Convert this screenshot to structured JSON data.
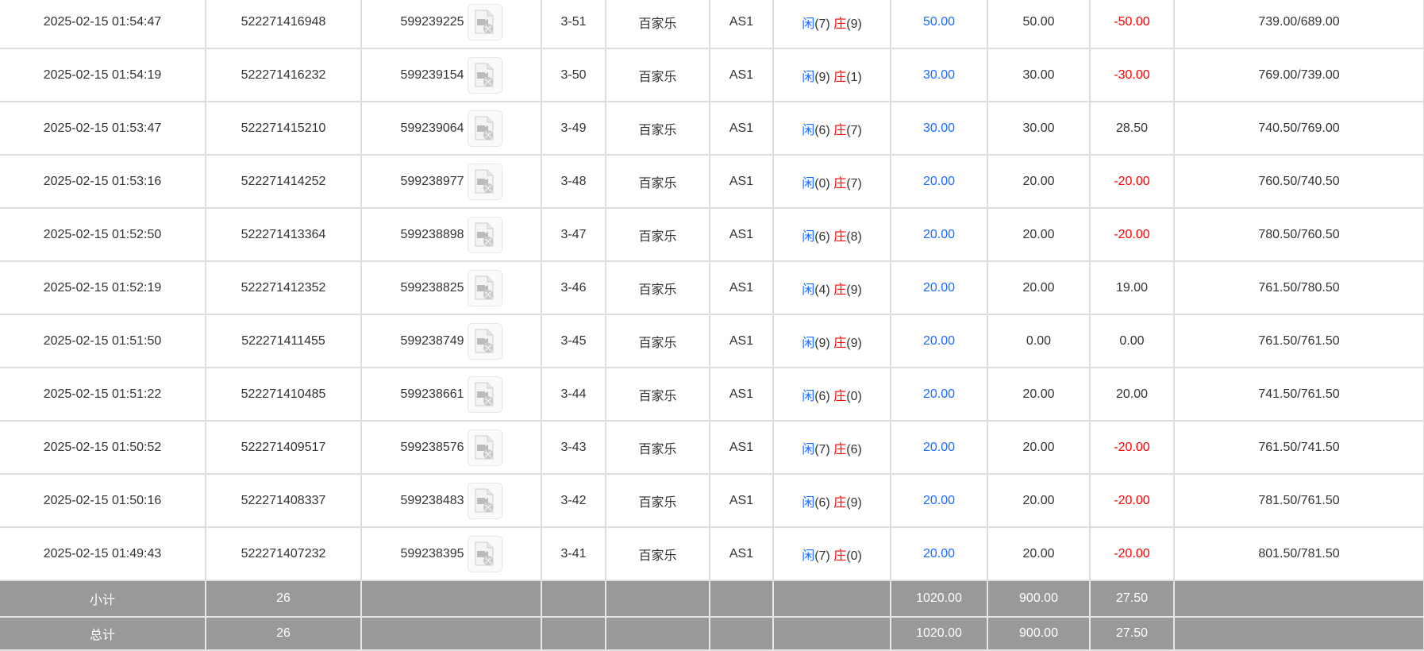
{
  "rows": [
    {
      "time": "2025-02-15 01:54:47",
      "bet_id": "522271416948",
      "round_id": "599239225",
      "table": "3-51",
      "game": "百家乐",
      "room": "AS1",
      "player_label": "闲",
      "player_pts": "(7)",
      "banker_label": "庄",
      "banker_pts": "(9)",
      "bet": "50.00",
      "valid": "50.00",
      "win": "-50.00",
      "win_neg": true,
      "balance": "739.00/689.00"
    },
    {
      "time": "2025-02-15 01:54:19",
      "bet_id": "522271416232",
      "round_id": "599239154",
      "table": "3-50",
      "game": "百家乐",
      "room": "AS1",
      "player_label": "闲",
      "player_pts": "(9)",
      "banker_label": "庄",
      "banker_pts": "(1)",
      "bet": "30.00",
      "valid": "30.00",
      "win": "-30.00",
      "win_neg": true,
      "balance": "769.00/739.00"
    },
    {
      "time": "2025-02-15 01:53:47",
      "bet_id": "522271415210",
      "round_id": "599239064",
      "table": "3-49",
      "game": "百家乐",
      "room": "AS1",
      "player_label": "闲",
      "player_pts": "(6)",
      "banker_label": "庄",
      "banker_pts": "(7)",
      "bet": "30.00",
      "valid": "30.00",
      "win": "28.50",
      "win_neg": false,
      "balance": "740.50/769.00"
    },
    {
      "time": "2025-02-15 01:53:16",
      "bet_id": "522271414252",
      "round_id": "599238977",
      "table": "3-48",
      "game": "百家乐",
      "room": "AS1",
      "player_label": "闲",
      "player_pts": "(0)",
      "banker_label": "庄",
      "banker_pts": "(7)",
      "bet": "20.00",
      "valid": "20.00",
      "win": "-20.00",
      "win_neg": true,
      "balance": "760.50/740.50"
    },
    {
      "time": "2025-02-15 01:52:50",
      "bet_id": "522271413364",
      "round_id": "599238898",
      "table": "3-47",
      "game": "百家乐",
      "room": "AS1",
      "player_label": "闲",
      "player_pts": "(6)",
      "banker_label": "庄",
      "banker_pts": "(8)",
      "bet": "20.00",
      "valid": "20.00",
      "win": "-20.00",
      "win_neg": true,
      "balance": "780.50/760.50"
    },
    {
      "time": "2025-02-15 01:52:19",
      "bet_id": "522271412352",
      "round_id": "599238825",
      "table": "3-46",
      "game": "百家乐",
      "room": "AS1",
      "player_label": "闲",
      "player_pts": "(4)",
      "banker_label": "庄",
      "banker_pts": "(9)",
      "bet": "20.00",
      "valid": "20.00",
      "win": "19.00",
      "win_neg": false,
      "balance": "761.50/780.50"
    },
    {
      "time": "2025-02-15 01:51:50",
      "bet_id": "522271411455",
      "round_id": "599238749",
      "table": "3-45",
      "game": "百家乐",
      "room": "AS1",
      "player_label": "闲",
      "player_pts": "(9)",
      "banker_label": "庄",
      "banker_pts": "(9)",
      "bet": "20.00",
      "valid": "0.00",
      "win": "0.00",
      "win_neg": false,
      "balance": "761.50/761.50"
    },
    {
      "time": "2025-02-15 01:51:22",
      "bet_id": "522271410485",
      "round_id": "599238661",
      "table": "3-44",
      "game": "百家乐",
      "room": "AS1",
      "player_label": "闲",
      "player_pts": "(6)",
      "banker_label": "庄",
      "banker_pts": "(0)",
      "bet": "20.00",
      "valid": "20.00",
      "win": "20.00",
      "win_neg": false,
      "balance": "741.50/761.50"
    },
    {
      "time": "2025-02-15 01:50:52",
      "bet_id": "522271409517",
      "round_id": "599238576",
      "table": "3-43",
      "game": "百家乐",
      "room": "AS1",
      "player_label": "闲",
      "player_pts": "(7)",
      "banker_label": "庄",
      "banker_pts": "(6)",
      "bet": "20.00",
      "valid": "20.00",
      "win": "-20.00",
      "win_neg": true,
      "balance": "761.50/741.50"
    },
    {
      "time": "2025-02-15 01:50:16",
      "bet_id": "522271408337",
      "round_id": "599238483",
      "table": "3-42",
      "game": "百家乐",
      "room": "AS1",
      "player_label": "闲",
      "player_pts": "(6)",
      "banker_label": "庄",
      "banker_pts": "(9)",
      "bet": "20.00",
      "valid": "20.00",
      "win": "-20.00",
      "win_neg": true,
      "balance": "781.50/761.50"
    },
    {
      "time": "2025-02-15 01:49:43",
      "bet_id": "522271407232",
      "round_id": "599238395",
      "table": "3-41",
      "game": "百家乐",
      "room": "AS1",
      "player_label": "闲",
      "player_pts": "(7)",
      "banker_label": "庄",
      "banker_pts": "(0)",
      "bet": "20.00",
      "valid": "20.00",
      "win": "-20.00",
      "win_neg": true,
      "balance": "801.50/781.50"
    }
  ],
  "subtotal": {
    "label": "小计",
    "count": "26",
    "bet": "1020.00",
    "valid": "900.00",
    "win": "27.50"
  },
  "total": {
    "label": "总计",
    "count": "26",
    "bet": "1020.00",
    "valid": "900.00",
    "win": "27.50"
  },
  "colors": {
    "player": "#1a6cff",
    "banker": "#ff0000",
    "negative": "#ff0000",
    "summary_bg": "#999999"
  },
  "icons": {
    "replay": "video-file-icon"
  }
}
